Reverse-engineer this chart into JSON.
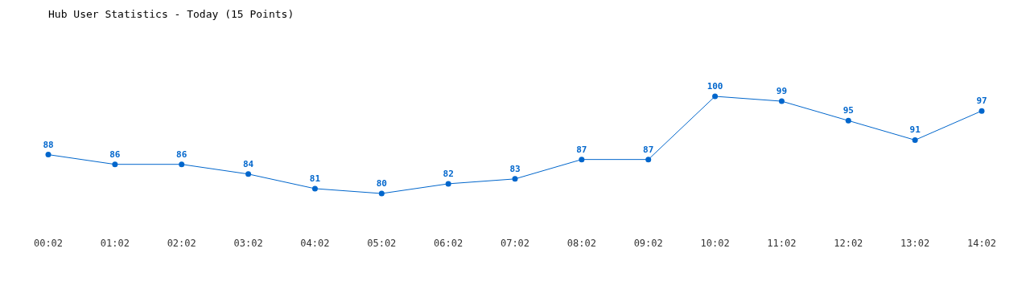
{
  "chart_data": {
    "type": "line",
    "title": "Hub User Statistics - Today (15 Points)",
    "categories": [
      "00:02",
      "01:02",
      "02:02",
      "03:02",
      "04:02",
      "05:02",
      "06:02",
      "07:02",
      "08:02",
      "09:02",
      "10:02",
      "11:02",
      "12:02",
      "13:02",
      "14:02"
    ],
    "series": [
      {
        "color": "#0066cc",
        "values": [
          88,
          86,
          86,
          84,
          81,
          80,
          82,
          83,
          87,
          87,
          100,
          99,
          95,
          91,
          97
        ]
      }
    ],
    "data_labels": true,
    "marker": "circle"
  }
}
